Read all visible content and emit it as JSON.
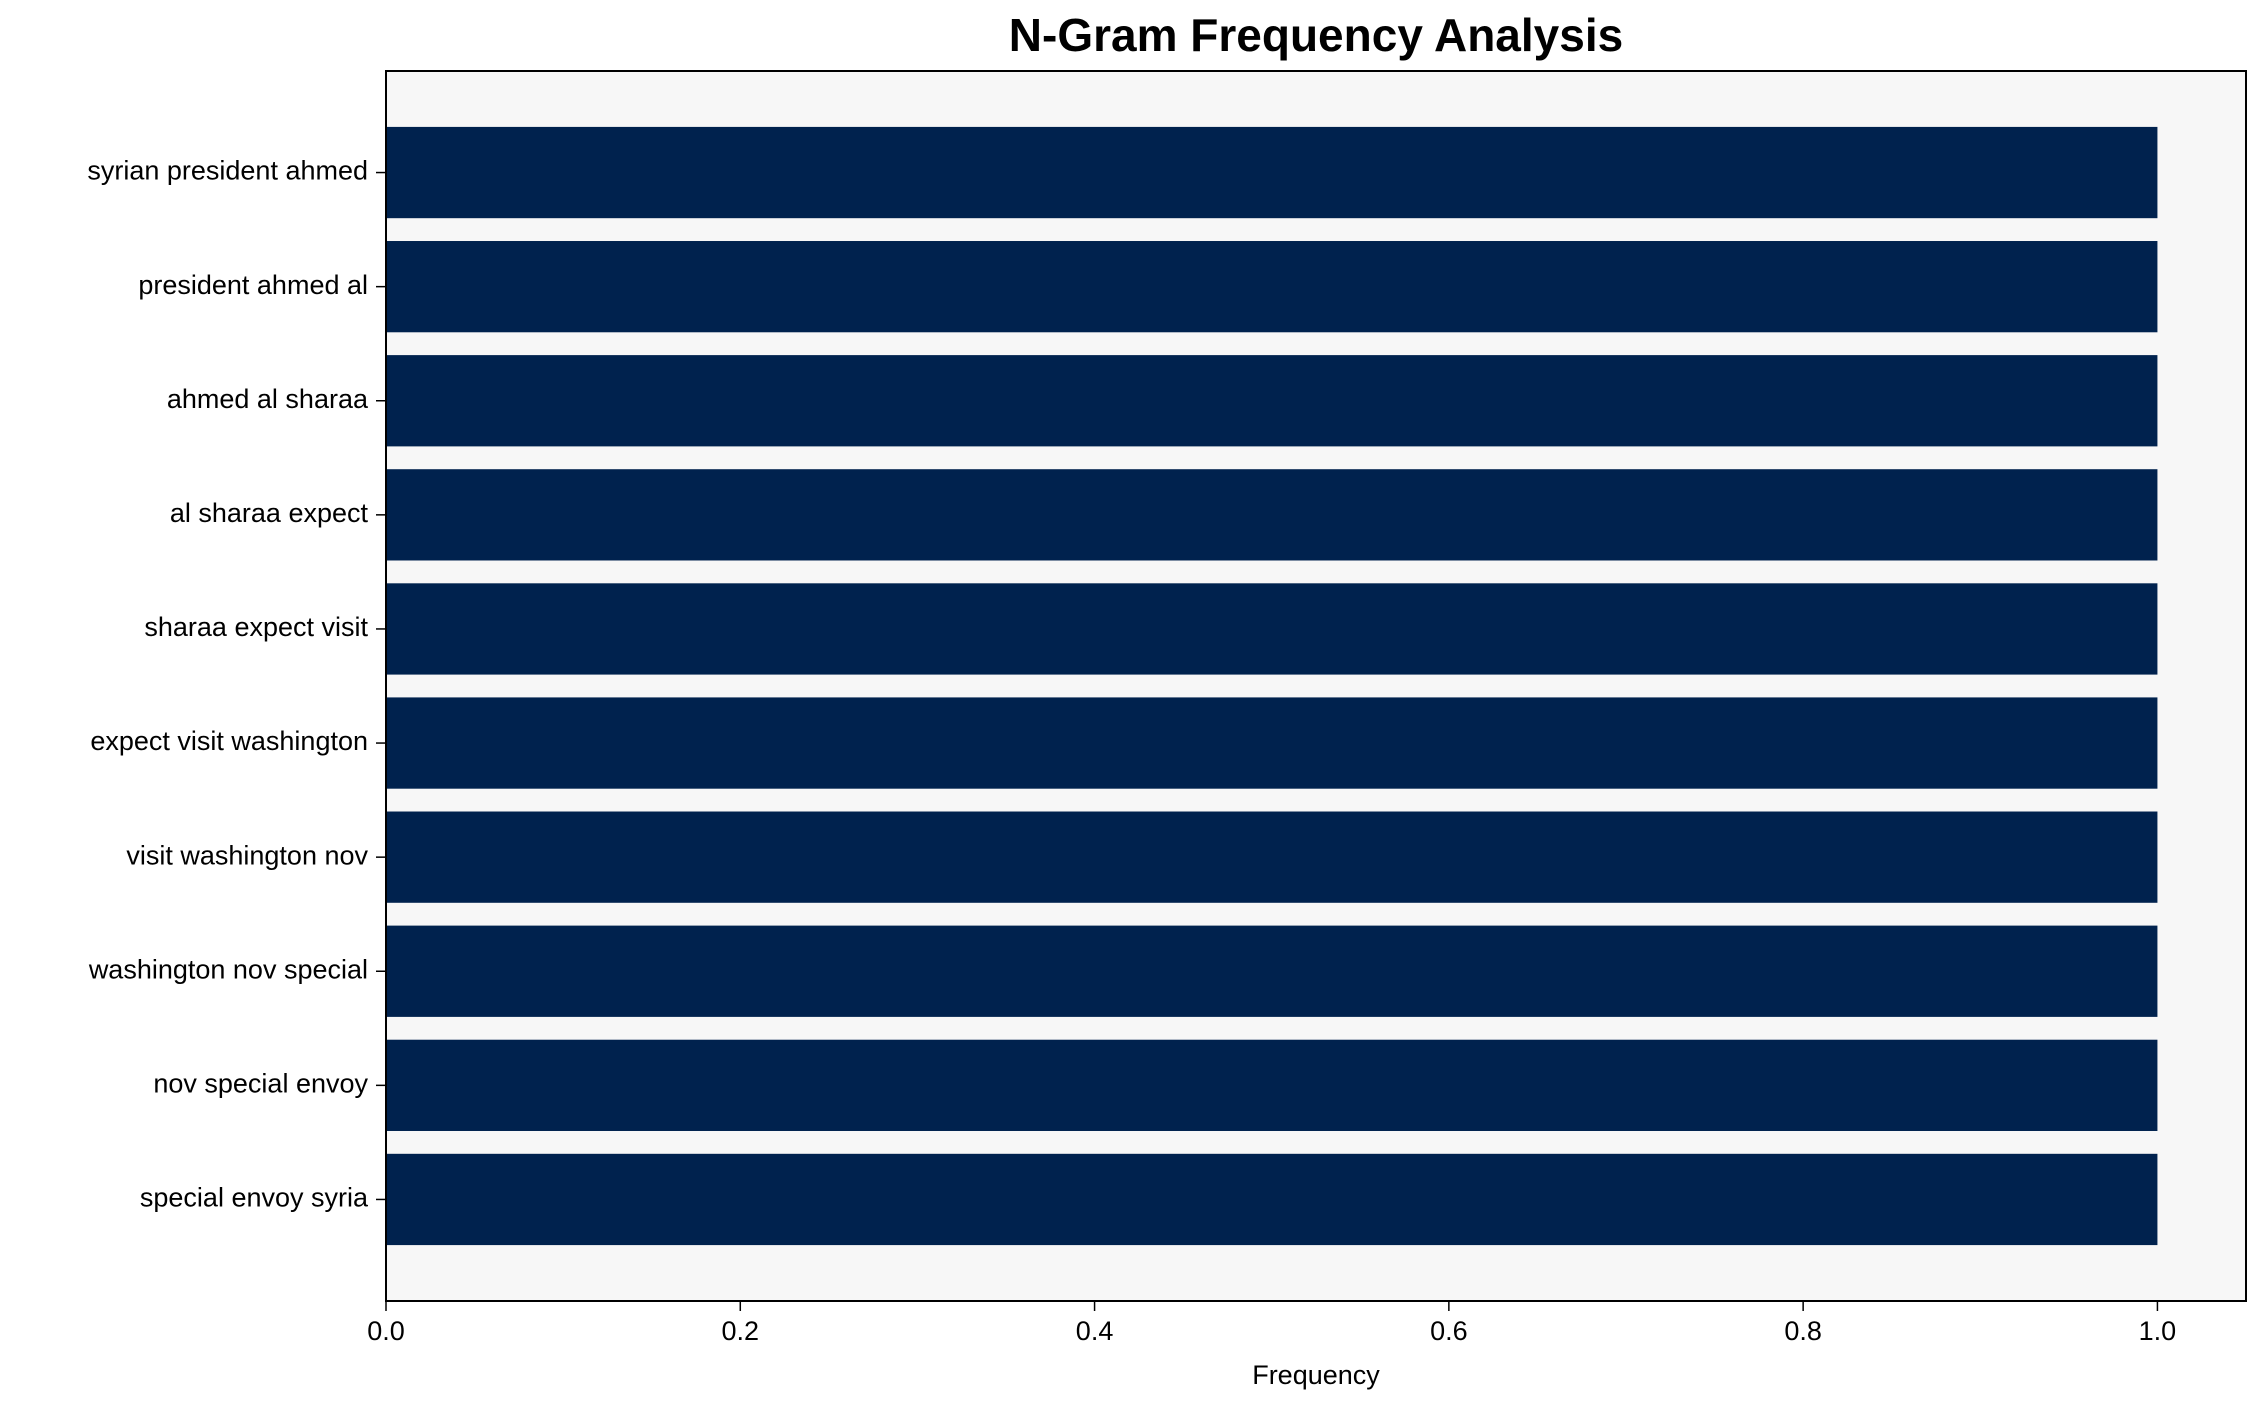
{
  "chart_data": {
    "type": "hbar",
    "title": "N-Gram Frequency Analysis",
    "x_label": "Frequency",
    "categories": [
      "syrian president ahmed",
      "president ahmed al",
      "ahmed al sharaa",
      "al sharaa expect",
      "sharaa expect visit",
      "expect visit washington",
      "visit washington nov",
      "washington nov special",
      "nov special envoy",
      "special envoy syria"
    ],
    "values": [
      1,
      1,
      1,
      1,
      1,
      1,
      1,
      1,
      1,
      1
    ],
    "color": "#00224e",
    "xlim": [
      0,
      1.05
    ],
    "xticks": [
      {
        "value": 0,
        "label": "0.0"
      },
      0.2,
      0.4,
      0.6,
      0.8,
      {
        "value": 1,
        "label": "1.0"
      }
    ],
    "grid": false
  }
}
